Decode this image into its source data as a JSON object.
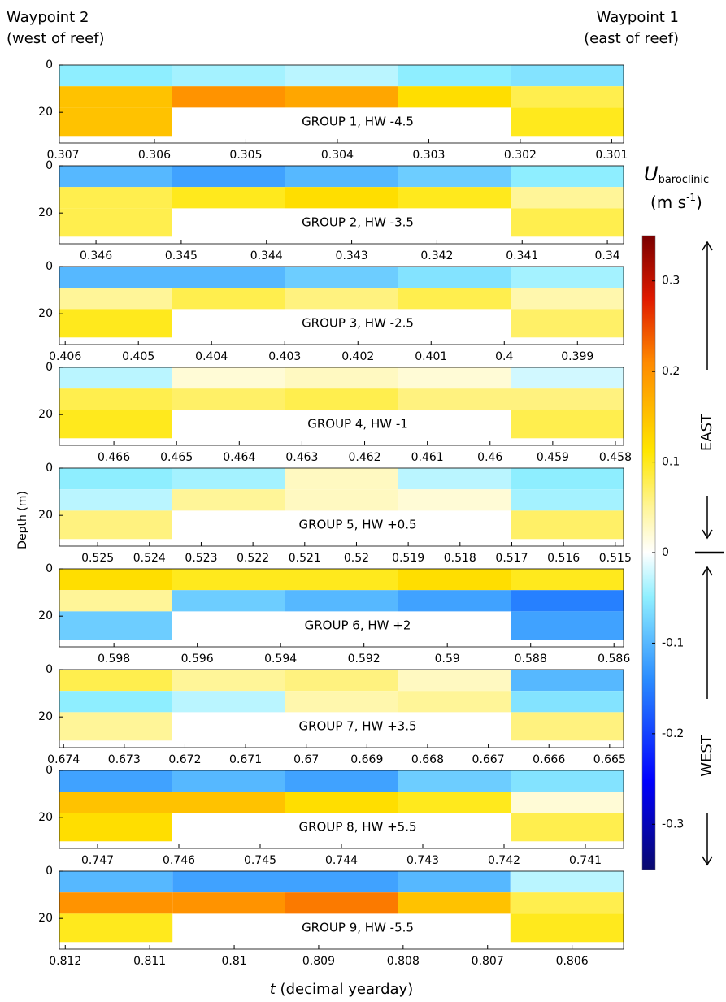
{
  "figure": {
    "left_header": [
      "Waypoint 2",
      "(west of reef)"
    ],
    "right_header": [
      "Waypoint 1",
      "(east of reef)"
    ],
    "ylabel": "Depth (m)",
    "xlabel_var": "t",
    "xlabel": "(decimal yearday)"
  },
  "colorbar": {
    "symbol": "U",
    "subscript": "baroclinic",
    "units": "(m s",
    "units_exp": "-1",
    "units_close": ")",
    "clim": [
      -0.35,
      0.35
    ],
    "ticks": [
      -0.3,
      -0.2,
      -0.1,
      0,
      0.1,
      0.2,
      0.3
    ],
    "east": "EAST",
    "west": "WEST"
  },
  "chart_data": [
    {
      "type": "heatmap",
      "title": "GROUP 1, HW -4.5",
      "xlim": [
        0.30704,
        0.30087
      ],
      "xticks": [
        0.307,
        0.306,
        0.305,
        0.304,
        0.303,
        0.302,
        0.301
      ],
      "ylim": [
        0,
        33
      ],
      "yticks": [
        0,
        20
      ],
      "x_edges": [
        0.30704,
        0.30581,
        0.30457,
        0.30334,
        0.3021,
        0.30087
      ],
      "depth_edges": [
        0,
        9,
        18,
        30
      ],
      "z": [
        [
          -0.05,
          -0.04,
          -0.03,
          -0.05,
          -0.06
        ],
        [
          0.15,
          0.2,
          0.18,
          0.12,
          0.08
        ],
        [
          0.15,
          null,
          null,
          null,
          0.1
        ]
      ]
    },
    {
      "type": "heatmap",
      "title": "GROUP 2, HW -3.5",
      "xlim": [
        0.34643,
        0.33981
      ],
      "xticks": [
        0.346,
        0.345,
        0.344,
        0.343,
        0.342,
        0.341,
        0.34
      ],
      "ylim": [
        0,
        33
      ],
      "yticks": [
        0,
        20
      ],
      "x_edges": [
        0.34643,
        0.34511,
        0.34378,
        0.34246,
        0.34113,
        0.33981
      ],
      "depth_edges": [
        0,
        9,
        18,
        30
      ],
      "z": [
        [
          -0.1,
          -0.12,
          -0.1,
          -0.08,
          -0.05
        ],
        [
          0.08,
          0.1,
          0.12,
          0.1,
          0.05
        ],
        [
          0.08,
          null,
          null,
          null,
          0.08
        ]
      ]
    },
    {
      "type": "heatmap",
      "title": "GROUP 3, HW -2.5",
      "xlim": [
        0.40608,
        0.39837
      ],
      "xticks": [
        0.406,
        0.405,
        0.404,
        0.403,
        0.402,
        0.401,
        0.4,
        0.399
      ],
      "ylim": [
        0,
        33
      ],
      "yticks": [
        0,
        20
      ],
      "x_edges": [
        0.40608,
        0.40454,
        0.403,
        0.40145,
        0.39991,
        0.39837
      ],
      "depth_edges": [
        0,
        9,
        18,
        30
      ],
      "z": [
        [
          -0.1,
          -0.1,
          -0.08,
          -0.06,
          -0.04
        ],
        [
          0.05,
          0.08,
          0.06,
          0.08,
          0.04
        ],
        [
          0.1,
          null,
          null,
          null,
          0.07
        ]
      ]
    },
    {
      "type": "heatmap",
      "title": "GROUP 4, HW -1",
      "xlim": [
        0.46687,
        0.45787
      ],
      "xticks": [
        0.466,
        0.465,
        0.464,
        0.463,
        0.462,
        0.461,
        0.46,
        0.459,
        0.458
      ],
      "ylim": [
        0,
        33
      ],
      "yticks": [
        0,
        20
      ],
      "x_edges": [
        0.46687,
        0.46507,
        0.46327,
        0.46147,
        0.45967,
        0.45787
      ],
      "depth_edges": [
        0,
        9,
        18,
        30
      ],
      "z": [
        [
          -0.03,
          0.02,
          0.03,
          0.02,
          -0.02
        ],
        [
          0.08,
          0.07,
          0.08,
          0.06,
          0.06
        ],
        [
          0.1,
          null,
          null,
          null,
          0.08
        ]
      ]
    },
    {
      "type": "heatmap",
      "title": "GROUP 5, HW +0.5",
      "xlim": [
        0.52574,
        0.51484
      ],
      "xticks": [
        0.525,
        0.524,
        0.523,
        0.522,
        0.521,
        0.52,
        0.519,
        0.518,
        0.517,
        0.516,
        0.515
      ],
      "ylim": [
        0,
        33
      ],
      "yticks": [
        0,
        20
      ],
      "x_edges": [
        0.52574,
        0.52356,
        0.52138,
        0.5192,
        0.51702,
        0.51484
      ],
      "depth_edges": [
        0,
        9,
        18,
        30
      ],
      "z": [
        [
          -0.05,
          -0.04,
          0.03,
          -0.03,
          -0.05
        ],
        [
          -0.03,
          0.05,
          0.03,
          0.02,
          -0.04
        ],
        [
          0.06,
          null,
          null,
          null,
          0.07
        ]
      ]
    },
    {
      "type": "heatmap",
      "title": "GROUP 6, HW +2",
      "xlim": [
        0.59931,
        0.58577
      ],
      "xticks": [
        0.598,
        0.596,
        0.594,
        0.592,
        0.59,
        0.588,
        0.586
      ],
      "ylim": [
        0,
        33
      ],
      "yticks": [
        0,
        20
      ],
      "x_edges": [
        0.59931,
        0.5966,
        0.59389,
        0.59119,
        0.58848,
        0.58577
      ],
      "depth_edges": [
        0,
        9,
        18,
        30
      ],
      "z": [
        [
          0.12,
          0.1,
          0.1,
          0.12,
          0.1
        ],
        [
          0.05,
          -0.08,
          -0.1,
          -0.12,
          -0.15
        ],
        [
          -0.08,
          null,
          null,
          null,
          -0.12
        ]
      ]
    },
    {
      "type": "heatmap",
      "title": "GROUP 7, HW +3.5",
      "xlim": [
        0.67407,
        0.66477
      ],
      "xticks": [
        0.674,
        0.673,
        0.672,
        0.671,
        0.67,
        0.669,
        0.668,
        0.667,
        0.666,
        0.665
      ],
      "ylim": [
        0,
        33
      ],
      "yticks": [
        0,
        20
      ],
      "x_edges": [
        0.67407,
        0.67221,
        0.67035,
        0.66849,
        0.66663,
        0.66477
      ],
      "depth_edges": [
        0,
        9,
        18,
        30
      ],
      "z": [
        [
          0.08,
          0.05,
          0.06,
          0.03,
          -0.1
        ],
        [
          -0.05,
          -0.03,
          0.04,
          0.05,
          -0.06
        ],
        [
          0.05,
          null,
          null,
          null,
          0.06
        ]
      ]
    },
    {
      "type": "heatmap",
      "title": "GROUP 8, HW +5.5",
      "xlim": [
        0.74747,
        0.74053
      ],
      "xticks": [
        0.747,
        0.746,
        0.745,
        0.744,
        0.743,
        0.742,
        0.741
      ],
      "ylim": [
        0,
        33
      ],
      "yticks": [
        0,
        20
      ],
      "x_edges": [
        0.74747,
        0.74608,
        0.74469,
        0.74331,
        0.74192,
        0.74053
      ],
      "depth_edges": [
        0,
        9,
        18,
        30
      ],
      "z": [
        [
          -0.12,
          -0.1,
          -0.12,
          -0.08,
          -0.06
        ],
        [
          0.15,
          0.15,
          0.12,
          0.1,
          0.02
        ],
        [
          0.12,
          null,
          null,
          null,
          0.08
        ]
      ]
    },
    {
      "type": "heatmap",
      "title": "GROUP 9, HW -5.5",
      "xlim": [
        0.81207,
        0.80539
      ],
      "xticks": [
        0.812,
        0.811,
        0.81,
        0.809,
        0.808,
        0.807,
        0.806
      ],
      "ylim": [
        0,
        33
      ],
      "yticks": [
        0,
        20
      ],
      "x_edges": [
        0.81207,
        0.81073,
        0.8094,
        0.80806,
        0.80673,
        0.80539
      ],
      "depth_edges": [
        0,
        9,
        18,
        30
      ],
      "z": [
        [
          -0.1,
          -0.12,
          -0.12,
          -0.1,
          -0.03
        ],
        [
          0.2,
          0.2,
          0.22,
          0.15,
          0.08
        ],
        [
          0.1,
          null,
          null,
          null,
          0.1
        ]
      ]
    }
  ]
}
